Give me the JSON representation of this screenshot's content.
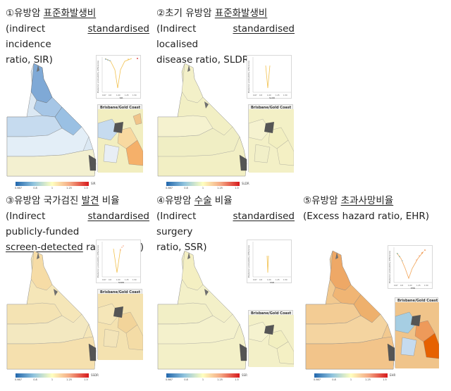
{
  "panels": [
    {
      "id": "p1",
      "line1_prefix": "①유방암 ",
      "line1_u": "표준화발생비",
      "line2_pre": "(indirect ",
      "line2_u": "standardised",
      "line2_post": " incidence",
      "line3": "ratio, SIR)",
      "plot_ylabel": "Posterior probability difference",
      "plot_xlabel": "SIR",
      "plot_ticks": [
        "0.67",
        "0.8",
        "1.00",
        "1.25",
        "1.50"
      ],
      "city_label": "Brisbane/Gold Coast",
      "legend_metric": "SIR",
      "legend_ticks": [
        "0.667",
        "0.8",
        "1",
        "1.25",
        "1.5"
      ],
      "tint": "#f2efc4"
    },
    {
      "id": "p2",
      "line1_prefix": "②초기 유방암 ",
      "line1_u": "표준화발생비",
      "line2_pre": "(Indirect ",
      "line2_u": "standardised",
      "line2_post": " localised",
      "line3": "disease ratio, SLDR)",
      "plot_ylabel": "Posterior probability difference",
      "plot_xlabel": "SLDR",
      "plot_ticks": [
        "0.67",
        "0.8",
        "1.00",
        "1.25",
        "1.50"
      ],
      "city_label": "Brisbane/Gold Coast",
      "legend_metric": "SLDR",
      "legend_ticks": [
        "0.667",
        "0.8",
        "1",
        "1.25",
        "1.5"
      ],
      "tint": "#f2efc4"
    },
    {
      "id": "p3",
      "line1_prefix": "③유방암 국가검진 ",
      "line1_u": "발견",
      "line1_suffix": " 비율",
      "line2_pre": "(Indirect ",
      "line2_u": "standardised",
      "line2_post": " publicly-funded",
      "line3_u": "screen-detected",
      "line3": " ratio, SSDR)",
      "plot_ylabel": "Posterior probability difference",
      "plot_xlabel": "SSDR",
      "plot_ticks": [
        "0.67",
        "0.8",
        "1.00",
        "1.25",
        "1.50"
      ],
      "city_label": "Brisbane/Gold Coast",
      "legend_metric": "SSDR",
      "legend_ticks": [
        "0.667",
        "0.8",
        "1",
        "1.25",
        "1.5"
      ],
      "tint": "#f5e2b0"
    },
    {
      "id": "p4",
      "line1_prefix": "④유방암 ",
      "line1_u": "수술",
      "line1_suffix": " 비율",
      "line2_pre": "(Indirect ",
      "line2_u": "standardised",
      "line2_post": " surgery",
      "line3": "ratio, SSR)",
      "plot_ylabel": "Posterior probability difference",
      "plot_xlabel": "SSR",
      "plot_ticks": [
        "0.67",
        "0.8",
        "1.00",
        "1.25",
        "1.50"
      ],
      "city_label": "Brisbane/Gold Coast",
      "legend_metric": "SSR",
      "legend_ticks": [
        "0.667",
        "0.8",
        "1",
        "1.25",
        "1.5"
      ],
      "tint": "#f3f0c8"
    },
    {
      "id": "p5",
      "line1_prefix": "⑤유방암 ",
      "line1_u": "초과사망비율",
      "line2": "(Excess hazard ratio, EHR)",
      "plot_ylabel": "Posterior probability difference",
      "plot_xlabel": "EHR",
      "plot_ticks": [
        "0.67",
        "0.8",
        "1.00",
        "1.25",
        "1.50"
      ],
      "city_label": "Brisbane/Gold Coast",
      "legend_metric": "EHR",
      "legend_ticks": [
        "0.667",
        "0.8",
        "1",
        "1.25",
        "1.5"
      ],
      "tint": "#f0c48a"
    }
  ],
  "colors": {
    "low": "#2166ac",
    "mid": "#ffffbf",
    "high": "#d7191c",
    "land_grey": "#6e6e6e",
    "border": "#9a9a9a"
  }
}
